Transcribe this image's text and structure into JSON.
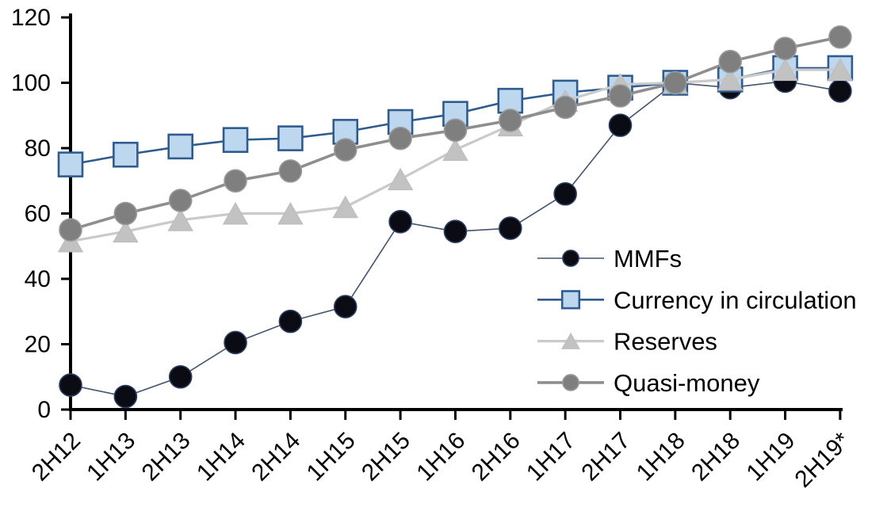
{
  "chart_data": {
    "type": "line",
    "title": "",
    "xlabel": "",
    "ylabel": "",
    "background": "#ffffff",
    "axis_color": "#000000",
    "grid": false,
    "x_label_rotation": -45,
    "legend_position": "inside-right",
    "categories": [
      "2H12",
      "1H13",
      "2H13",
      "1H14",
      "2H14",
      "1H15",
      "2H15",
      "1H16",
      "2H16",
      "1H17",
      "2H17",
      "1H18",
      "2H18",
      "1H19",
      "2H19*"
    ],
    "y_axis": {
      "min": 0,
      "max": 120,
      "step": 20,
      "ticks": [
        0,
        20,
        40,
        60,
        80,
        100,
        120
      ]
    },
    "series": [
      {
        "name": "MMFs",
        "marker": "circle",
        "marker_fill": "#0b0b13",
        "marker_stroke": "#2a3f63",
        "line_color": "#44546a",
        "line_width": 1.6,
        "marker_size": 28,
        "values": [
          7.5,
          4,
          10,
          20.5,
          27,
          31.5,
          57.5,
          54.5,
          55.5,
          66,
          87,
          100,
          98.5,
          100.5,
          97.5
        ]
      },
      {
        "name": "Currency in circulation",
        "marker": "square",
        "marker_fill": "#bdd7ee",
        "marker_stroke": "#2e5c8f",
        "line_color": "#2e5c8f",
        "line_width": 2.6,
        "marker_size": 30,
        "values": [
          75,
          78,
          80.5,
          82.5,
          83,
          85,
          88,
          90.5,
          94.5,
          97,
          98.5,
          100,
          101,
          104.5,
          104.5
        ]
      },
      {
        "name": "Reserves",
        "marker": "triangle",
        "marker_fill": "#c2c2c2",
        "marker_stroke": "#bcbcbc",
        "line_color": "#cacaca",
        "line_width": 3.2,
        "marker_size": 29,
        "values": [
          51.5,
          54.5,
          58,
          60,
          60,
          62,
          70.5,
          79.5,
          87,
          94.5,
          99.5,
          100,
          101,
          104,
          104
        ]
      },
      {
        "name": "Quasi-money",
        "marker": "circle",
        "marker_fill": "#7f7f7f",
        "marker_stroke": "#9b9b9b",
        "line_color": "#8e8e8e",
        "line_width": 3.6,
        "marker_size": 28,
        "values": [
          55,
          60,
          64,
          70,
          73,
          79.5,
          83,
          85.5,
          88.5,
          92.5,
          96,
          100,
          106.5,
          110.5,
          114
        ]
      }
    ]
  }
}
